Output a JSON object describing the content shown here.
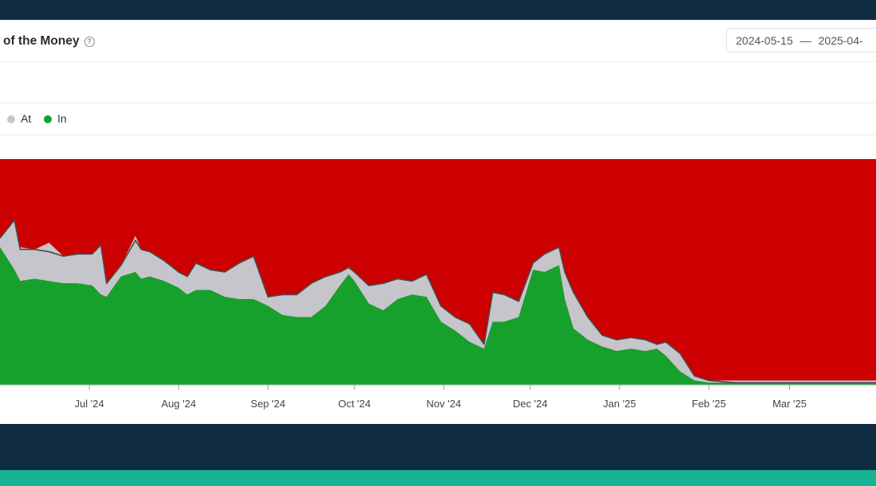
{
  "header": {
    "title": "of the Money",
    "date_start": "2024-05-15",
    "date_sep": "—",
    "date_end": "2025-04-"
  },
  "legend": [
    {
      "label": "At",
      "color": "#c5c5cb"
    },
    {
      "label": "In",
      "color": "#16a12c"
    }
  ],
  "colors": {
    "out_area": "#cc0000",
    "at_area": "#c5c5cb",
    "in_area": "#16a12c",
    "line": "#4a4a4a",
    "help_icon": "question-circle-icon"
  },
  "chart_data": {
    "type": "area",
    "stacked": true,
    "normalized_to_percent": true,
    "title": "",
    "xlabel": "",
    "ylabel": "",
    "ylim": [
      0,
      100
    ],
    "grid": false,
    "legend_position": "top-left",
    "x_range": [
      "2024-05-31",
      "2025-03-31"
    ],
    "x_tick_labels": [
      {
        "date": "2024-07-01",
        "label": "Jul '24"
      },
      {
        "date": "2024-08-01",
        "label": "Aug '24"
      },
      {
        "date": "2024-09-01",
        "label": "Sep '24"
      },
      {
        "date": "2024-10-01",
        "label": "Oct '24"
      },
      {
        "date": "2024-11-01",
        "label": "Nov '24"
      },
      {
        "date": "2024-12-01",
        "label": "Dec '24"
      },
      {
        "date": "2025-01-01",
        "label": "Jan '25"
      },
      {
        "date": "2025-02-01",
        "label": "Feb '25"
      },
      {
        "date": "2025-03-01",
        "label": "Mar '25"
      }
    ],
    "x": [
      "2024-05-31",
      "2024-06-05",
      "2024-06-07",
      "2024-06-12",
      "2024-06-17",
      "2024-06-22",
      "2024-06-27",
      "2024-07-02",
      "2024-07-05",
      "2024-07-07",
      "2024-07-12",
      "2024-07-17",
      "2024-07-19",
      "2024-07-22",
      "2024-07-27",
      "2024-08-01",
      "2024-08-04",
      "2024-08-07",
      "2024-08-12",
      "2024-08-17",
      "2024-08-22",
      "2024-08-27",
      "2024-09-01",
      "2024-09-06",
      "2024-09-11",
      "2024-09-16",
      "2024-09-21",
      "2024-09-26",
      "2024-09-29",
      "2024-10-01",
      "2024-10-06",
      "2024-10-11",
      "2024-10-16",
      "2024-10-21",
      "2024-10-26",
      "2024-10-31",
      "2024-11-05",
      "2024-11-10",
      "2024-11-15",
      "2024-11-18",
      "2024-11-22",
      "2024-11-27",
      "2024-12-02",
      "2024-12-06",
      "2024-12-11",
      "2024-12-13",
      "2024-12-16",
      "2024-12-21",
      "2024-12-26",
      "2024-12-31",
      "2025-01-05",
      "2025-01-10",
      "2025-01-14",
      "2025-01-17",
      "2025-01-22",
      "2025-01-27",
      "2025-02-01",
      "2025-02-10",
      "2025-02-20",
      "2025-03-01",
      "2025-03-10",
      "2025-03-20",
      "2025-03-31"
    ],
    "series": [
      {
        "name": "In",
        "values": [
          61,
          51,
          46,
          47,
          46,
          45,
          45,
          44,
          40,
          39,
          48,
          50,
          47,
          48,
          46,
          43,
          40,
          42,
          42,
          39,
          38,
          38,
          35,
          31,
          30,
          30,
          35,
          44,
          49,
          46,
          36,
          33,
          38,
          40,
          39,
          28,
          24,
          19,
          16,
          28,
          28,
          30,
          51,
          50,
          53,
          38,
          25,
          20,
          17,
          15,
          16,
          15,
          16,
          13,
          6,
          2,
          1,
          1,
          1,
          1,
          1,
          1,
          1
        ]
      },
      {
        "name": "At",
        "values": [
          4,
          22,
          15,
          13,
          17,
          12,
          13,
          14,
          22,
          6,
          5,
          16,
          13,
          11,
          9,
          7,
          8,
          12,
          9,
          11,
          16,
          19,
          4,
          9,
          10,
          15,
          13,
          6,
          3,
          4,
          8,
          12,
          9,
          6,
          10,
          7,
          6,
          8,
          2,
          13,
          12,
          7,
          3,
          8,
          8,
          12,
          16,
          10,
          5,
          5,
          5,
          5,
          2,
          6,
          8,
          2,
          1,
          1,
          1,
          1,
          1,
          1,
          1
        ]
      }
    ],
    "line_series_values": [
      65,
      73,
      60,
      60,
      59,
      57,
      58,
      58,
      62,
      45,
      53,
      64,
      60,
      59,
      55,
      50,
      48,
      54,
      51,
      50,
      54,
      57,
      39,
      40,
      40,
      45,
      48,
      50,
      52,
      50,
      44,
      45,
      47,
      46,
      49,
      35,
      30,
      27,
      18,
      41,
      40,
      37,
      54,
      58,
      61,
      50,
      41,
      30,
      22,
      20,
      21,
      20,
      18,
      19,
      14,
      4,
      2,
      1,
      1,
      1,
      1,
      1,
      1
    ]
  }
}
